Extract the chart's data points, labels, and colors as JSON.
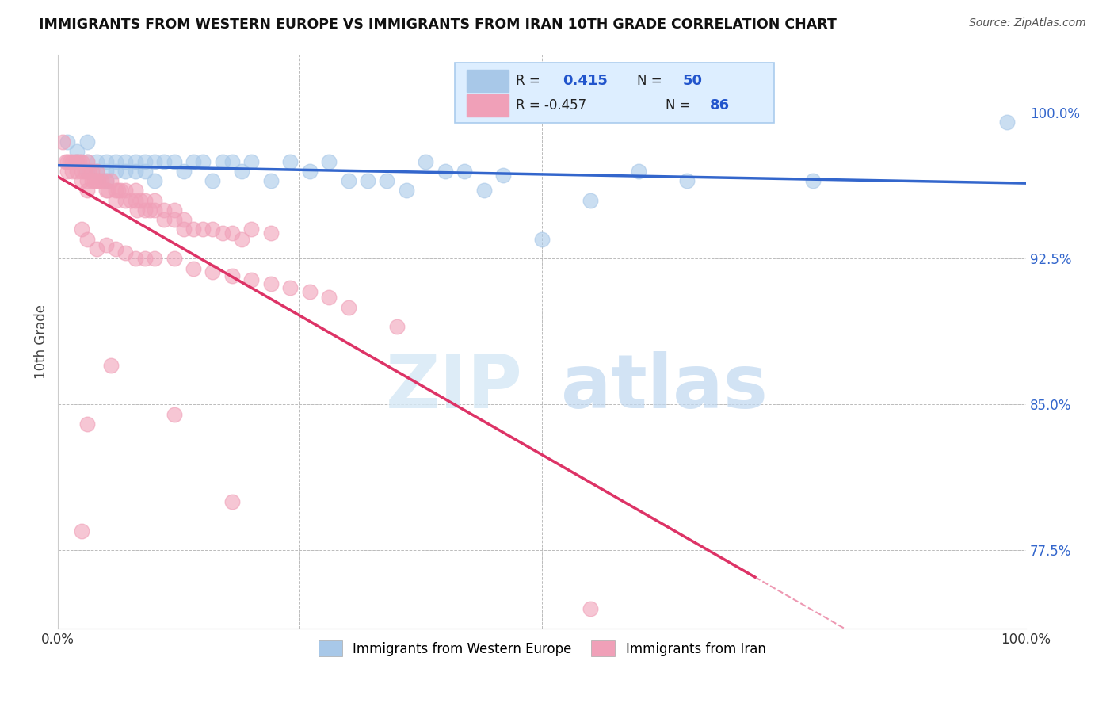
{
  "title": "IMMIGRANTS FROM WESTERN EUROPE VS IMMIGRANTS FROM IRAN 10TH GRADE CORRELATION CHART",
  "source": "Source: ZipAtlas.com",
  "ylabel": "10th Grade",
  "xlim": [
    0.0,
    1.0
  ],
  "ylim": [
    0.735,
    1.03
  ],
  "yticks": [
    0.775,
    0.85,
    0.925,
    1.0
  ],
  "ytick_labels": [
    "77.5%",
    "85.0%",
    "92.5%",
    "100.0%"
  ],
  "xticks": [
    0.0,
    0.25,
    0.5,
    0.75,
    1.0
  ],
  "xtick_labels": [
    "0.0%",
    "",
    "",
    "",
    "100.0%"
  ],
  "blue_color": "#a8c8e8",
  "pink_color": "#f0a0b8",
  "blue_line_color": "#3366cc",
  "pink_line_color": "#dd3366",
  "watermark_zip": "ZIP",
  "watermark_atlas": "atlas",
  "blue_scatter_x": [
    0.01,
    0.02,
    0.02,
    0.03,
    0.03,
    0.03,
    0.04,
    0.04,
    0.05,
    0.05,
    0.05,
    0.06,
    0.06,
    0.07,
    0.07,
    0.08,
    0.08,
    0.09,
    0.09,
    0.1,
    0.1,
    0.11,
    0.12,
    0.13,
    0.14,
    0.15,
    0.16,
    0.17,
    0.18,
    0.19,
    0.2,
    0.22,
    0.24,
    0.26,
    0.28,
    0.3,
    0.32,
    0.34,
    0.36,
    0.38,
    0.4,
    0.42,
    0.44,
    0.46,
    0.5,
    0.55,
    0.6,
    0.65,
    0.78,
    0.98
  ],
  "blue_scatter_y": [
    0.985,
    0.975,
    0.98,
    0.975,
    0.97,
    0.985,
    0.975,
    0.97,
    0.975,
    0.97,
    0.965,
    0.975,
    0.97,
    0.975,
    0.97,
    0.975,
    0.97,
    0.975,
    0.97,
    0.975,
    0.965,
    0.975,
    0.975,
    0.97,
    0.975,
    0.975,
    0.965,
    0.975,
    0.975,
    0.97,
    0.975,
    0.965,
    0.975,
    0.97,
    0.975,
    0.965,
    0.965,
    0.965,
    0.96,
    0.975,
    0.97,
    0.97,
    0.96,
    0.968,
    0.935,
    0.955,
    0.97,
    0.965,
    0.965,
    0.995
  ],
  "pink_scatter_x": [
    0.005,
    0.008,
    0.01,
    0.01,
    0.012,
    0.015,
    0.015,
    0.018,
    0.02,
    0.02,
    0.022,
    0.025,
    0.025,
    0.025,
    0.028,
    0.03,
    0.03,
    0.03,
    0.032,
    0.035,
    0.035,
    0.038,
    0.04,
    0.04,
    0.042,
    0.045,
    0.05,
    0.05,
    0.052,
    0.055,
    0.06,
    0.06,
    0.062,
    0.065,
    0.07,
    0.07,
    0.075,
    0.08,
    0.08,
    0.082,
    0.085,
    0.09,
    0.09,
    0.095,
    0.1,
    0.1,
    0.11,
    0.11,
    0.12,
    0.12,
    0.13,
    0.13,
    0.14,
    0.15,
    0.16,
    0.17,
    0.18,
    0.19,
    0.2,
    0.22,
    0.025,
    0.03,
    0.04,
    0.05,
    0.06,
    0.07,
    0.08,
    0.09,
    0.1,
    0.12,
    0.14,
    0.16,
    0.18,
    0.2,
    0.22,
    0.24,
    0.26,
    0.28,
    0.3,
    0.35,
    0.055,
    0.12,
    0.18,
    0.55,
    0.025,
    0.03
  ],
  "pink_scatter_y": [
    0.985,
    0.975,
    0.975,
    0.97,
    0.975,
    0.975,
    0.97,
    0.975,
    0.975,
    0.97,
    0.975,
    0.975,
    0.97,
    0.965,
    0.97,
    0.975,
    0.965,
    0.96,
    0.97,
    0.97,
    0.965,
    0.965,
    0.97,
    0.965,
    0.965,
    0.965,
    0.965,
    0.96,
    0.96,
    0.965,
    0.96,
    0.955,
    0.96,
    0.96,
    0.96,
    0.955,
    0.955,
    0.96,
    0.955,
    0.95,
    0.955,
    0.955,
    0.95,
    0.95,
    0.955,
    0.95,
    0.95,
    0.945,
    0.95,
    0.945,
    0.945,
    0.94,
    0.94,
    0.94,
    0.94,
    0.938,
    0.938,
    0.935,
    0.94,
    0.938,
    0.94,
    0.935,
    0.93,
    0.932,
    0.93,
    0.928,
    0.925,
    0.925,
    0.925,
    0.925,
    0.92,
    0.918,
    0.916,
    0.914,
    0.912,
    0.91,
    0.908,
    0.905,
    0.9,
    0.89,
    0.87,
    0.845,
    0.8,
    0.745,
    0.785,
    0.84
  ]
}
